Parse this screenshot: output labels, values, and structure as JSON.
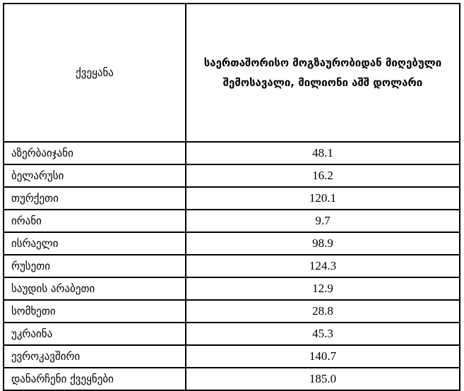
{
  "table": {
    "headers": [
      "ქვეყანა",
      "საერთაშორისო მოგზაურობიდან მიღებული შემოსავალი, მილიონი აშშ დოლარი"
    ],
    "rows": [
      {
        "country": "აზერბაიჯანი",
        "value": "48.1"
      },
      {
        "country": "ბელარუსი",
        "value": "16.2"
      },
      {
        "country": "თურქეთი",
        "value": "120.1"
      },
      {
        "country": "ირანი",
        "value": "9.7"
      },
      {
        "country": "ისრაელი",
        "value": "98.9"
      },
      {
        "country": "რუსეთი",
        "value": "124.3"
      },
      {
        "country": "საუდის არაბეთი",
        "value": "12.9"
      },
      {
        "country": "სომხეთი",
        "value": "28.8"
      },
      {
        "country": "უკრაინა",
        "value": "45.3"
      },
      {
        "country": "ევროკავშირი",
        "value": "140.7"
      },
      {
        "country": "დანარჩენი ქვეყნები",
        "value": "185.0"
      }
    ]
  }
}
